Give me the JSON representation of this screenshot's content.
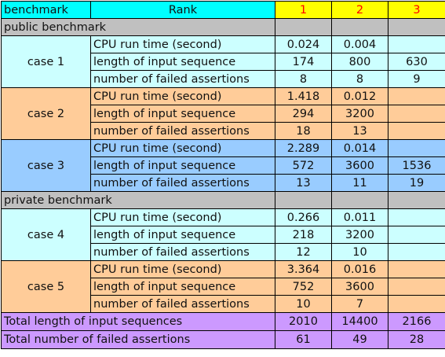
{
  "header": {
    "benchmark_label": "benchmark",
    "rank_label": "Rank",
    "rank_columns": [
      "1",
      "2",
      "3"
    ]
  },
  "sections": [
    {
      "title": "public benchmark",
      "cases": [
        {
          "name": "case 1",
          "color": "#ccffff",
          "rows": [
            {
              "metric": "CPU run time (second)",
              "values": [
                "0.024",
                "0.004",
                ""
              ]
            },
            {
              "metric": "length of input sequence",
              "values": [
                "174",
                "800",
                "630"
              ]
            },
            {
              "metric": "number of failed assertions",
              "values": [
                "8",
                "8",
                "9"
              ]
            }
          ]
        },
        {
          "name": "case 2",
          "color": "#ffcc99",
          "rows": [
            {
              "metric": "CPU run time (second)",
              "values": [
                "1.418",
                "0.012",
                ""
              ]
            },
            {
              "metric": "length of input sequence",
              "values": [
                "294",
                "3200",
                ""
              ]
            },
            {
              "metric": "number of failed assertions",
              "values": [
                "18",
                "13",
                ""
              ]
            }
          ]
        },
        {
          "name": "case 3",
          "color": "#99ccff",
          "rows": [
            {
              "metric": "CPU run time (second)",
              "values": [
                "2.289",
                "0.014",
                ""
              ]
            },
            {
              "metric": "length of input sequence",
              "values": [
                "572",
                "3600",
                "1536"
              ]
            },
            {
              "metric": "number of failed assertions",
              "values": [
                "13",
                "11",
                "19"
              ]
            }
          ]
        }
      ]
    },
    {
      "title": "private benchmark",
      "cases": [
        {
          "name": "case 4",
          "color": "#ccffff",
          "rows": [
            {
              "metric": "CPU run time (second)",
              "values": [
                "0.266",
                "0.011",
                ""
              ]
            },
            {
              "metric": "length of input sequence",
              "values": [
                "218",
                "3200",
                ""
              ]
            },
            {
              "metric": "number of failed assertions",
              "values": [
                "12",
                "10",
                ""
              ]
            }
          ]
        },
        {
          "name": "case 5",
          "color": "#ffcc99",
          "rows": [
            {
              "metric": "CPU run time (second)",
              "values": [
                "3.364",
                "0.016",
                ""
              ]
            },
            {
              "metric": "length of input sequence",
              "values": [
                "752",
                "3600",
                ""
              ]
            },
            {
              "metric": "number of failed assertions",
              "values": [
                "10",
                "7",
                ""
              ]
            }
          ]
        }
      ]
    }
  ],
  "totals": [
    {
      "label": "Total length of input sequences",
      "values": [
        "2010",
        "14400",
        "2166"
      ]
    },
    {
      "label": "Total number of failed assertions",
      "values": [
        "61",
        "49",
        "28"
      ]
    }
  ],
  "colors": {
    "header_cyan": "#00ffff",
    "header_yellow": "#ffff00",
    "header_red_text": "#ff0000",
    "section_gray": "#c0c0c0",
    "case_cyan": "#ccffff",
    "case_orange": "#ffcc99",
    "case_blue": "#99ccff",
    "totals_purple": "#cc99ff"
  }
}
